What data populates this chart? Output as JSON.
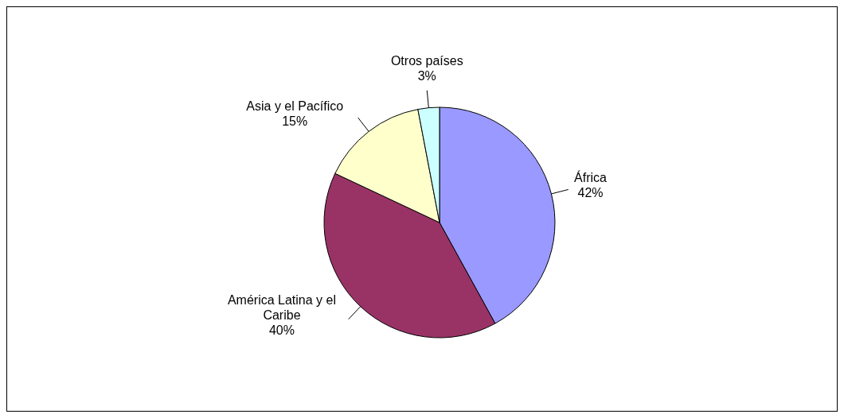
{
  "chart_data": {
    "type": "pie",
    "categories": [
      "África",
      "América Latina y el Caribe",
      "Asia y el Pacífico",
      "Otros países"
    ],
    "values": [
      42,
      40,
      15,
      3
    ],
    "colors": [
      "#9999ff",
      "#993366",
      "#ffffcc",
      "#ccffff"
    ],
    "value_labels": [
      "42%",
      "40%",
      "15%",
      "3%"
    ],
    "legend": false
  }
}
